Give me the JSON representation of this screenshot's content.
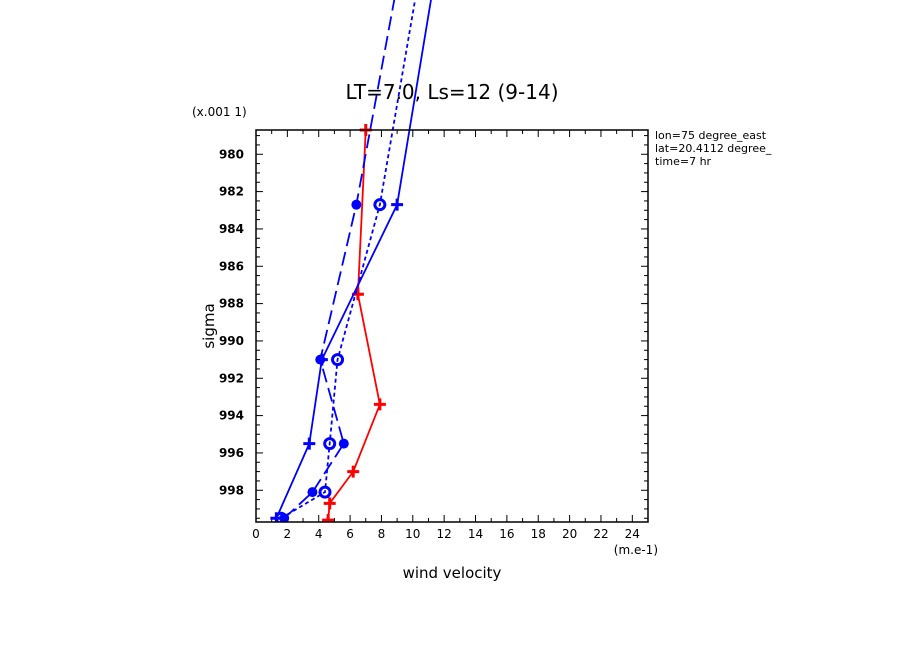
{
  "chart_data": {
    "type": "line",
    "title": "LT=7.0, Ls=12 (9-14)",
    "xlabel": "wind velocity",
    "ylabel": "sigma",
    "x_unit": "(m.e-1)",
    "y_scale_label": "(x.001 1)",
    "xlim": [
      0,
      25
    ],
    "ylim": [
      999.7,
      978.7
    ],
    "x_ticks": [
      "0",
      "2",
      "4",
      "6",
      "8",
      "10",
      "12",
      "14",
      "16",
      "18",
      "20",
      "22",
      "24"
    ],
    "y_ticks": [
      "980",
      "982",
      "984",
      "986",
      "988",
      "990",
      "992",
      "994",
      "996",
      "998"
    ],
    "info": [
      "lon=75 degree_east",
      "lat=20.4112 degree_",
      "time=7 hr"
    ],
    "series": [
      {
        "color": "#ff0000",
        "style": "solid",
        "marker": "plus",
        "x": [
          4.6,
          4.7,
          6.2,
          7.9,
          6.5,
          7.0
        ],
        "y": [
          999.6,
          998.7,
          997.0,
          993.4,
          987.5,
          978.7
        ]
      },
      {
        "color": "#0000ff",
        "style": "solid",
        "marker": "plus",
        "x": [
          1.3,
          3.4,
          4.2,
          9.0,
          11.5
        ],
        "y": [
          999.5,
          995.5,
          991.0,
          982.7,
          970.0
        ]
      },
      {
        "color": "#0000ff",
        "style": "dashed",
        "marker": "ring",
        "x": [
          1.6,
          4.4,
          4.7,
          5.2,
          7.9,
          10.5
        ],
        "y": [
          999.5,
          998.1,
          995.5,
          991.0,
          982.7,
          970.0
        ]
      },
      {
        "color": "#0000ff",
        "style": "longdash",
        "marker": "dot",
        "x": [
          1.8,
          3.6,
          5.6,
          4.1,
          6.4,
          9.2
        ],
        "y": [
          999.5,
          998.1,
          995.5,
          991.0,
          982.7,
          970.0
        ]
      }
    ]
  }
}
